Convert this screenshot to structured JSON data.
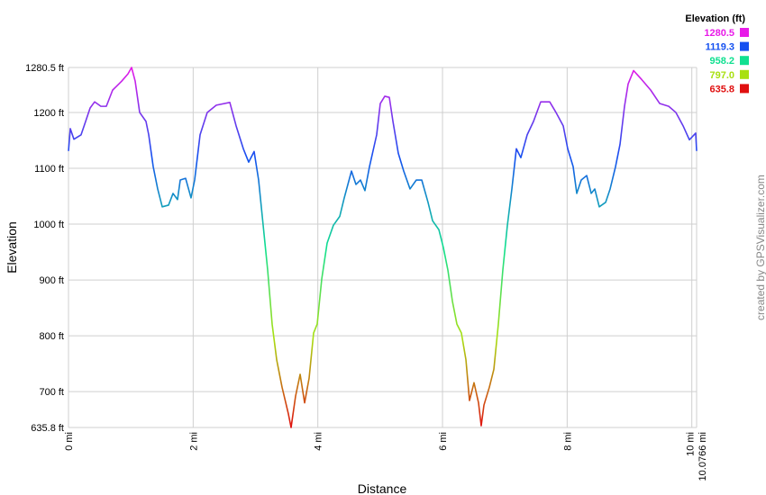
{
  "chart_data": {
    "type": "line",
    "xlabel": "Distance",
    "ylabel": "Elevation",
    "credit": "created by GPSVisualizer.com",
    "legend": {
      "title": "Elevation (ft)",
      "entries": [
        {
          "value": 1280.5,
          "label": "1280.5",
          "color": "#e81ae8"
        },
        {
          "value": 1119.3,
          "label": "1119.3",
          "color": "#1450f0"
        },
        {
          "value": 958.2,
          "label": "958.2",
          "color": "#10e090"
        },
        {
          "value": 797.0,
          "label": "797.0",
          "color": "#a8e010"
        },
        {
          "value": 635.8,
          "label": "635.8",
          "color": "#e01010"
        }
      ]
    },
    "xlim": [
      0,
      10.0766
    ],
    "ylim": [
      635.8,
      1280.5
    ],
    "xticks": [
      {
        "value": 0,
        "label": "0 mi"
      },
      {
        "value": 2,
        "label": "2 mi"
      },
      {
        "value": 4,
        "label": "4 mi"
      },
      {
        "value": 6,
        "label": "6 mi"
      },
      {
        "value": 8,
        "label": "8 mi"
      },
      {
        "value": 10,
        "label": "10 mi"
      },
      {
        "value": 10.0766,
        "label": "10.0766 mi"
      }
    ],
    "yticks": [
      {
        "value": 635.8,
        "label": "635.8 ft"
      },
      {
        "value": 700,
        "label": "700 ft"
      },
      {
        "value": 800,
        "label": "800 ft"
      },
      {
        "value": 900,
        "label": "900 ft"
      },
      {
        "value": 1000,
        "label": "1000 ft"
      },
      {
        "value": 1100,
        "label": "1100 ft"
      },
      {
        "value": 1200,
        "label": "1200 ft"
      },
      {
        "value": 1280.5,
        "label": "1280.5 ft"
      }
    ],
    "grid": true,
    "x": [
      0,
      0.029,
      0.087,
      0.202,
      0.275,
      0.347,
      0.419,
      0.52,
      0.607,
      0.708,
      0.853,
      0.954,
      1.012,
      1.07,
      1.142,
      1.243,
      1.287,
      1.359,
      1.431,
      1.504,
      1.605,
      1.677,
      1.749,
      1.793,
      1.879,
      1.966,
      2.024,
      2.111,
      2.226,
      2.371,
      2.588,
      2.689,
      2.805,
      2.891,
      2.978,
      3.05,
      3.123,
      3.195,
      3.267,
      3.34,
      3.426,
      3.528,
      3.571,
      3.643,
      3.716,
      3.788,
      3.86,
      3.932,
      3.99,
      4.063,
      4.149,
      4.25,
      4.352,
      4.424,
      4.54,
      4.612,
      4.684,
      4.756,
      4.829,
      4.944,
      5.002,
      5.074,
      5.147,
      5.205,
      5.291,
      5.378,
      5.479,
      5.58,
      5.667,
      5.768,
      5.841,
      5.942,
      6.014,
      6.086,
      6.159,
      6.231,
      6.303,
      6.376,
      6.433,
      6.506,
      6.578,
      6.621,
      6.665,
      6.752,
      6.824,
      6.896,
      6.968,
      7.041,
      7.113,
      7.185,
      7.257,
      7.359,
      7.46,
      7.576,
      7.72,
      7.821,
      7.937,
      8.009,
      8.096,
      8.154,
      8.226,
      8.313,
      8.386,
      8.443,
      8.515,
      8.617,
      8.689,
      8.776,
      8.848,
      8.92,
      8.978,
      9.065,
      9.195,
      9.34,
      9.485,
      9.629,
      9.744,
      9.86,
      9.961,
      10.062,
      10.0766
    ],
    "values": [
      1131,
      1171,
      1152,
      1160,
      1184,
      1208,
      1219,
      1211,
      1211,
      1240,
      1256,
      1269,
      1280.5,
      1256,
      1200,
      1184,
      1160,
      1103,
      1063,
      1031,
      1034,
      1055,
      1044,
      1079,
      1082,
      1047,
      1079,
      1160,
      1200,
      1213,
      1218,
      1176,
      1135,
      1111,
      1130,
      1079,
      998,
      918,
      821,
      757,
      708,
      660,
      635.8,
      692,
      731,
      680,
      724,
      805,
      821,
      902,
      966,
      998,
      1014,
      1047,
      1095,
      1071,
      1079,
      1060,
      1103,
      1160,
      1216,
      1229,
      1227,
      1184,
      1127,
      1095,
      1063,
      1079,
      1079,
      1039,
      1006,
      990,
      958,
      918,
      862,
      821,
      805,
      757,
      684,
      716,
      680,
      639,
      676,
      708,
      740,
      821,
      918,
      998,
      1063,
      1135,
      1119,
      1160,
      1184,
      1219,
      1219,
      1200,
      1176,
      1135,
      1103,
      1055,
      1079,
      1087,
      1055,
      1063,
      1031,
      1039,
      1063,
      1103,
      1143,
      1211,
      1251,
      1275,
      1259,
      1240,
      1216,
      1211,
      1200,
      1176,
      1151,
      1163,
      1131
    ]
  }
}
